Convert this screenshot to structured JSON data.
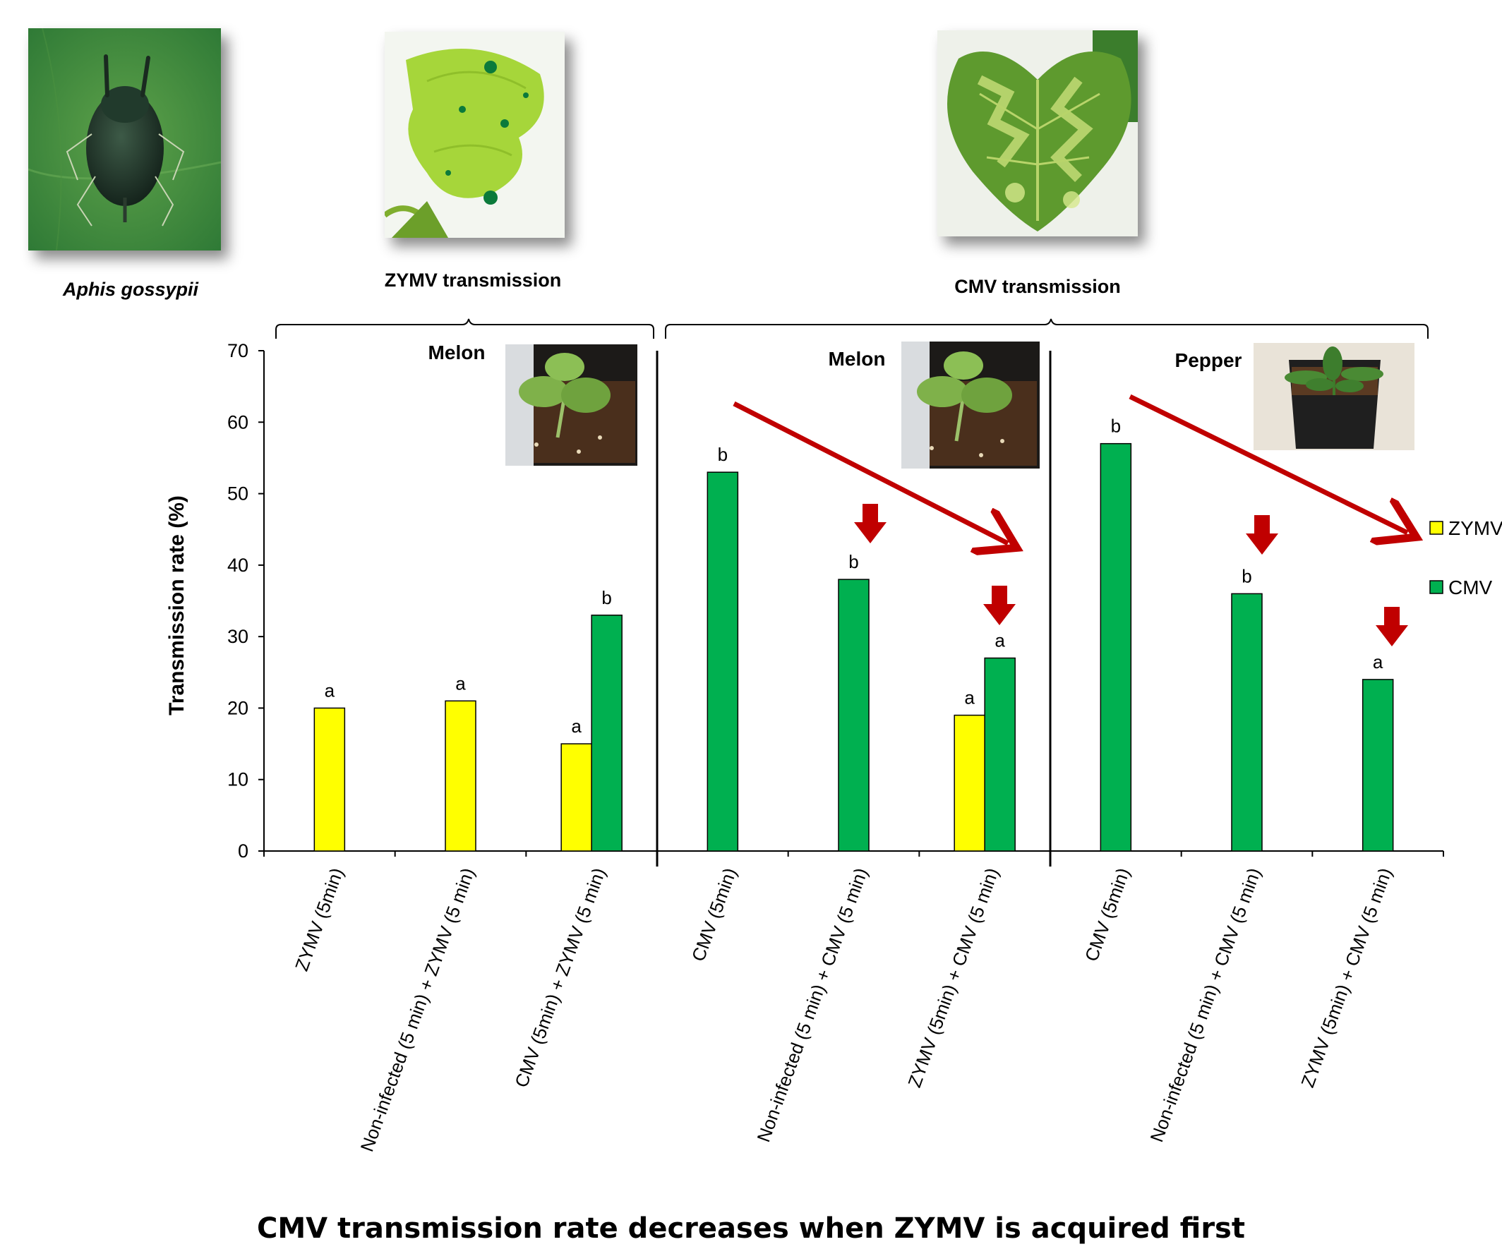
{
  "captions": {
    "aphid": "Aphis gossypii",
    "zymv": "ZYMV transmission",
    "cmv": "CMV transmission"
  },
  "bottom_title": "CMV transmission rate decreases when ZYMV is acquired first",
  "colors": {
    "zymv": "#ffff00",
    "cmv": "#00b050",
    "arrow": "#c00000"
  },
  "chart_data": {
    "type": "bar",
    "ylabel": "Transmission rate (%)",
    "ylim": [
      0,
      70
    ],
    "yticks": [
      0,
      10,
      20,
      30,
      40,
      50,
      60,
      70
    ],
    "legend": [
      {
        "name": "ZYMV",
        "color": "#ffff00"
      },
      {
        "name": "CMV",
        "color": "#00b050"
      }
    ],
    "panels": [
      {
        "label": "Melon",
        "groups": [
          0,
          1,
          2
        ]
      },
      {
        "label": "Melon",
        "groups": [
          3,
          4,
          5
        ]
      },
      {
        "label": "Pepper",
        "groups": [
          6,
          7,
          8
        ]
      }
    ],
    "categories": [
      "ZYMV (5min)",
      "Non-infected (5 min) + ZYMV (5 min)",
      "CMV (5min) + ZYMV (5 min)",
      "CMV (5min)",
      "Non-infected (5 min) + CMV (5 min)",
      "ZYMV (5min) + CMV (5 min)",
      "CMV (5min)",
      "Non-infected (5 min) + CMV (5 min)",
      "ZYMV (5min) + CMV (5 min)"
    ],
    "series": [
      {
        "name": "ZYMV",
        "color": "#ffff00",
        "values": [
          20,
          21,
          15,
          null,
          null,
          19,
          null,
          null,
          null
        ],
        "letters": [
          "a",
          "a",
          "a",
          null,
          null,
          "a",
          null,
          null,
          null
        ]
      },
      {
        "name": "CMV",
        "color": "#00b050",
        "values": [
          null,
          null,
          33,
          53,
          38,
          27,
          57,
          36,
          24
        ],
        "letters": [
          null,
          null,
          "b",
          "b",
          "b",
          "a",
          "b",
          "b",
          "a"
        ]
      }
    ]
  }
}
